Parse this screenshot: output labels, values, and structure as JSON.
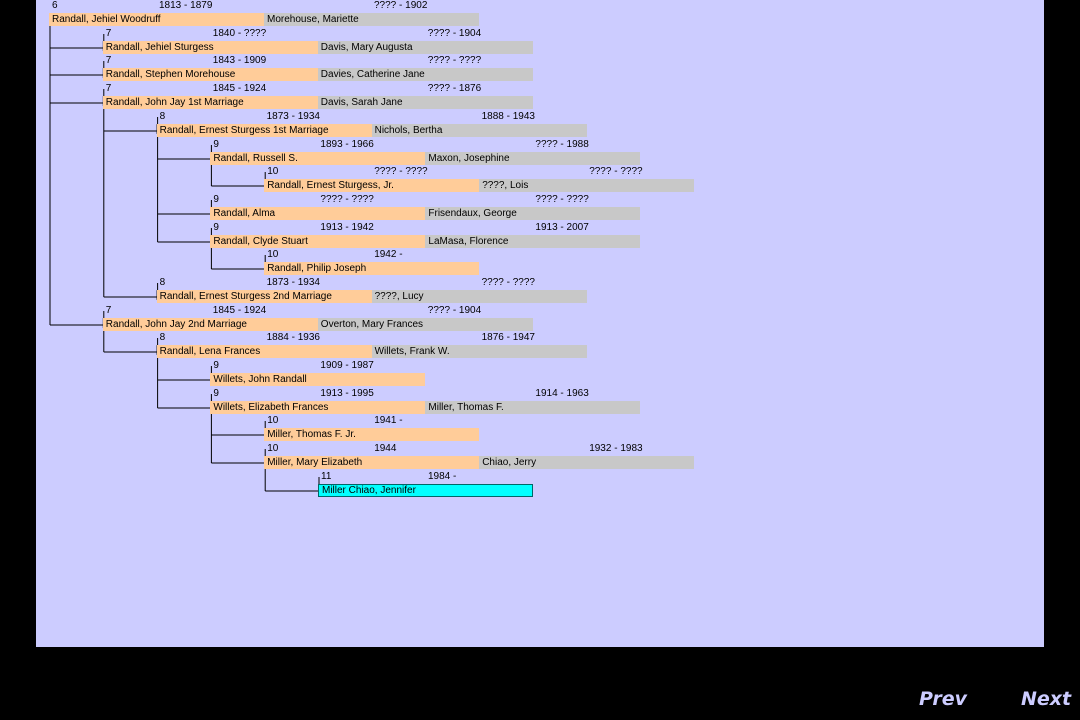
{
  "people": [
    {
      "gen": "6",
      "dates": "1813 - 1879",
      "name": "Randall, Jehiel Woodruff",
      "spouse": "Morehouse, Mariette",
      "spouse_dates": "???? - 1902"
    },
    {
      "gen": "7",
      "dates": "1840 - ????",
      "name": "Randall, Jehiel Sturgess",
      "spouse": "Davis, Mary Augusta",
      "spouse_dates": "???? - 1904"
    },
    {
      "gen": "7",
      "dates": "1843 - 1909",
      "name": "Randall, Stephen Morehouse",
      "spouse": "Davies, Catherine Jane",
      "spouse_dates": "???? - ????"
    },
    {
      "gen": "7",
      "dates": "1845 - 1924",
      "name": "Randall, John Jay 1st Marriage",
      "spouse": "Davis, Sarah Jane",
      "spouse_dates": "???? - 1876"
    },
    {
      "gen": "8",
      "dates": "1873 - 1934",
      "name": "Randall, Ernest Sturgess 1st Marriage",
      "spouse": "Nichols, Bertha",
      "spouse_dates": "1888 - 1943"
    },
    {
      "gen": "9",
      "dates": "1893 - 1966",
      "name": "Randall, Russell S.",
      "spouse": "Maxon, Josephine",
      "spouse_dates": "???? - 1988"
    },
    {
      "gen": "10",
      "dates": "???? - ????",
      "name": "Randall, Ernest Sturgess, Jr.",
      "spouse": "????, Lois",
      "spouse_dates": "???? - ????"
    },
    {
      "gen": "9",
      "dates": "???? - ????",
      "name": "Randall, Alma",
      "spouse": "Frisendaux, George",
      "spouse_dates": "???? - ????"
    },
    {
      "gen": "9",
      "dates": "1913 - 1942",
      "name": "Randall, Clyde Stuart",
      "spouse": "LaMasa, Florence",
      "spouse_dates": "1913 - 2007"
    },
    {
      "gen": "10",
      "dates": "1942 -",
      "name": "Randall, Philip Joseph",
      "spouse": "",
      "spouse_dates": ""
    },
    {
      "gen": "8",
      "dates": "1873 - 1934",
      "name": "Randall, Ernest Sturgess 2nd Marriage",
      "spouse": "????, Lucy",
      "spouse_dates": "???? - ????"
    },
    {
      "gen": "7",
      "dates": "1845 - 1924",
      "name": "Randall, John Jay 2nd Marriage",
      "spouse": "Overton, Mary Frances",
      "spouse_dates": "???? - 1904"
    },
    {
      "gen": "8",
      "dates": "1884 - 1936",
      "name": "Randall, Lena Frances",
      "spouse": "Willets, Frank W.",
      "spouse_dates": "1876 - 1947"
    },
    {
      "gen": "9",
      "dates": "1909 - 1987",
      "name": "Willets, John Randall",
      "spouse": "",
      "spouse_dates": ""
    },
    {
      "gen": "9",
      "dates": "1913 - 1995",
      "name": "Willets, Elizabeth Frances",
      "spouse": "Miller, Thomas F.",
      "spouse_dates": "1914 - 1963"
    },
    {
      "gen": "10",
      "dates": "1941 -",
      "name": "Miller, Thomas F. Jr.",
      "spouse": "",
      "spouse_dates": ""
    },
    {
      "gen": "10",
      "dates": "1944",
      "name": "Miller, Mary Elizabeth",
      "spouse": "Chiao, Jerry",
      "spouse_dates": "1932 - 1983"
    },
    {
      "gen": "11",
      "dates": "1984 -",
      "name": "Miller Chiao, Jennifer",
      "spouse": "",
      "spouse_dates": "",
      "highlight": true
    }
  ],
  "nav": {
    "prev": "Prev",
    "next": "Next"
  },
  "colors": {
    "background": "#ccccff",
    "person_bar": "#ffcc99",
    "spouse_bar": "#c8c8c8",
    "highlight": "#00ffff",
    "frame": "#000000",
    "nav_text": "#ccccff"
  }
}
